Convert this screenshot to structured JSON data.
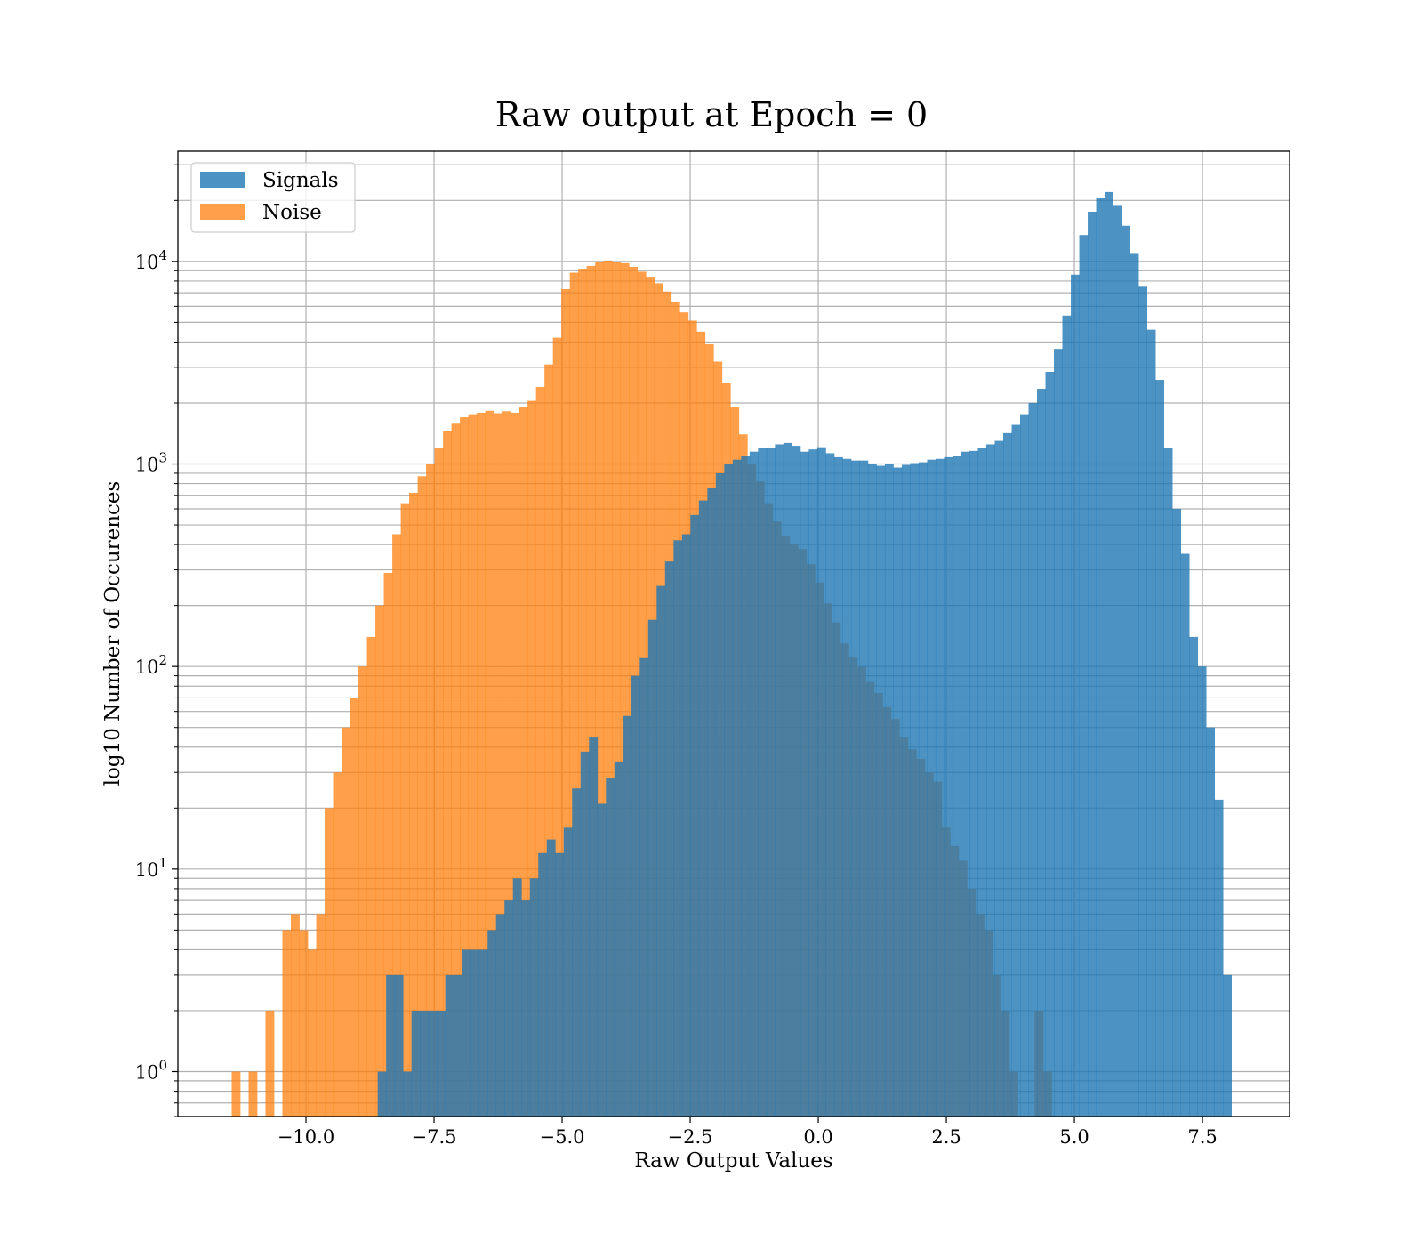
{
  "chart_data": {
    "type": "bar",
    "title": "Raw output at Epoch = 0",
    "xlabel": "Raw Output Values",
    "ylabel": "log10 Number of Occurences",
    "xlim": [
      -12.5,
      9.2
    ],
    "ylim": [
      0.6,
      35000
    ],
    "y_scale": "log",
    "grid": true,
    "legend_position": "upper left",
    "x_ticks": [
      -10,
      -7.5,
      -5,
      -2.5,
      0,
      2.5,
      5,
      7.5
    ],
    "x_tick_labels": [
      "−10.0",
      "−7.5",
      "−5.0",
      "−2.5",
      "0.0",
      "2.5",
      "5.0",
      "7.5"
    ],
    "y_ticks": [
      1,
      10,
      100,
      1000,
      10000
    ],
    "y_tick_labels": [
      {
        "base": "10",
        "exp": "0"
      },
      {
        "base": "10",
        "exp": "1"
      },
      {
        "base": "10",
        "exp": "2"
      },
      {
        "base": "10",
        "exp": "3"
      },
      {
        "base": "10",
        "exp": "4"
      }
    ],
    "series": [
      {
        "name": "Noise",
        "color": "#ff7f0e",
        "alpha": 0.75,
        "bin_width": 0.165,
        "bin_start": -11.45,
        "counts": [
          1,
          0,
          1,
          0,
          2,
          0,
          5,
          6,
          5,
          4,
          6,
          20,
          30,
          50,
          70,
          100,
          140,
          200,
          290,
          450,
          640,
          720,
          870,
          1000,
          1200,
          1450,
          1580,
          1700,
          1760,
          1790,
          1830,
          1780,
          1820,
          1790,
          1900,
          2050,
          2400,
          3100,
          4200,
          7300,
          8800,
          9200,
          9500,
          10000,
          10100,
          9900,
          9800,
          9400,
          8900,
          8400,
          7800,
          7100,
          6300,
          5600,
          5100,
          4500,
          3900,
          3200,
          2500,
          1900,
          1400,
          1000,
          820,
          640,
          520,
          440,
          400,
          380,
          320,
          260,
          205,
          165,
          130,
          112,
          100,
          84,
          74,
          63,
          55,
          45,
          39,
          35,
          30,
          27,
          16,
          13,
          11,
          8,
          6,
          5,
          3,
          2,
          1,
          0,
          0,
          2,
          1
        ]
      },
      {
        "name": "Signals",
        "color": "#1f77b4",
        "alpha": 0.8,
        "bin_width": 0.165,
        "bin_start": -8.6,
        "counts": [
          1,
          3,
          3,
          1,
          2,
          2,
          2,
          2,
          3,
          3,
          4,
          4,
          4,
          5,
          6,
          7,
          9,
          7,
          9,
          12,
          14,
          12,
          16,
          25,
          38,
          45,
          21,
          28,
          34,
          57,
          90,
          110,
          170,
          250,
          330,
          420,
          450,
          560,
          660,
          760,
          900,
          1000,
          1050,
          1100,
          1150,
          1200,
          1200,
          1250,
          1270,
          1230,
          1150,
          1180,
          1210,
          1130,
          1080,
          1060,
          1040,
          1040,
          1000,
          980,
          1000,
          960,
          990,
          1010,
          1020,
          1050,
          1060,
          1080,
          1100,
          1150,
          1160,
          1200,
          1250,
          1300,
          1420,
          1560,
          1760,
          2000,
          2350,
          2850,
          3700,
          5400,
          8600,
          13500,
          17600,
          20500,
          22000,
          19000,
          15000,
          11000,
          7500,
          4600,
          2600,
          1200,
          600,
          360,
          140,
          100,
          50,
          22,
          3
        ]
      }
    ]
  }
}
